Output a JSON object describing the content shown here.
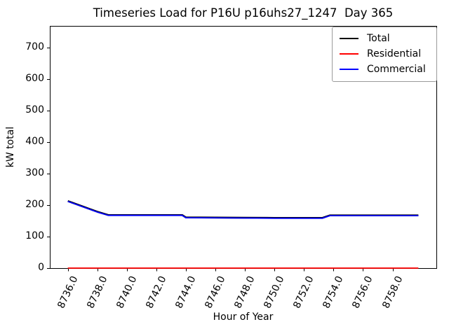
{
  "chart_data": {
    "type": "line",
    "title": "Timeseries Load for P16U p16uhs27_1247  Day 365",
    "xlabel": "Hour of Year",
    "ylabel": "kW total",
    "xlim": [
      8734.78,
      8760.97
    ],
    "ylim": [
      0,
      769.5
    ],
    "grid": false,
    "legend_position": "upper right",
    "x_ticks": [
      8736.0,
      8738.0,
      8740.0,
      8742.0,
      8744.0,
      8746.0,
      8748.0,
      8750.0,
      8752.0,
      8754.0,
      8756.0,
      8758.0
    ],
    "x_tick_labels": [
      "8736.0",
      "8738.0",
      "8740.0",
      "8742.0",
      "8744.0",
      "8746.0",
      "8748.0",
      "8750.0",
      "8752.0",
      "8754.0",
      "8756.0",
      "8758.0"
    ],
    "y_ticks": [
      0,
      100,
      200,
      300,
      400,
      500,
      600,
      700
    ],
    "y_tick_labels": [
      "0",
      "100",
      "200",
      "300",
      "400",
      "500",
      "600",
      "700"
    ],
    "x": [
      8736.0,
      8737.0,
      8738.0,
      8738.75,
      8740.0,
      8742.0,
      8743.75,
      8744.0,
      8746.0,
      8748.0,
      8750.0,
      8752.0,
      8753.25,
      8753.75,
      8756.0,
      8758.0,
      8759.75
    ],
    "series": [
      {
        "name": "Total",
        "color": "#000000",
        "line_width": 2.6,
        "values": [
          213,
          196,
          179,
          168.5,
          168.5,
          168.5,
          168.5,
          161,
          160.5,
          160,
          159.5,
          159.5,
          159.5,
          167.5,
          167.5,
          167.5,
          167.5
        ]
      },
      {
        "name": "Residential",
        "color": "#ff0000",
        "line_width": 1.8,
        "values": [
          0,
          0,
          0,
          0,
          0,
          0,
          0,
          0,
          0,
          0,
          0,
          0,
          0,
          0,
          0,
          0,
          0
        ]
      },
      {
        "name": "Commercial",
        "color": "#0000ff",
        "line_width": 1.8,
        "values": [
          212,
          195,
          178,
          167.5,
          167.5,
          167.5,
          167.5,
          160,
          159.5,
          159,
          158.5,
          158.5,
          158.5,
          166.5,
          166.5,
          166.5,
          166.5
        ]
      }
    ]
  }
}
